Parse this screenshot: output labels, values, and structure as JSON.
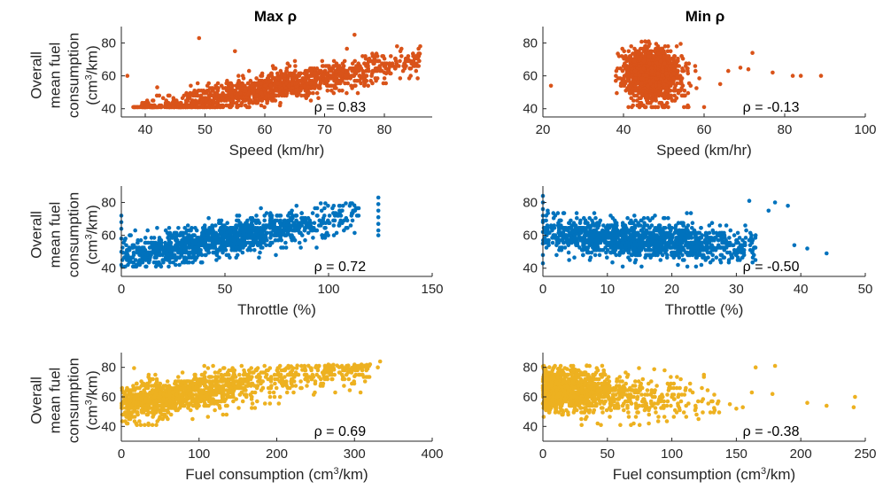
{
  "column_titles": [
    "Max ρ",
    "Min ρ"
  ],
  "row_ylabel_lines": [
    "Overall",
    "mean fuel",
    "consumption",
    "(cm³/km)"
  ],
  "colors": {
    "speed": "#D95319",
    "throttle": "#0072BD",
    "fuel": "#EDB120",
    "axis": "#262626"
  },
  "chart_data": [
    {
      "type": "scatter",
      "row": 0,
      "col": 0,
      "title": "Max ρ",
      "xlabel": "Speed (km/hr)",
      "ylabel": "Overall mean fuel consumption (cm³/km)",
      "xlim": [
        36,
        88
      ],
      "ylim": [
        35,
        90
      ],
      "xticks": [
        40,
        50,
        60,
        70,
        80
      ],
      "yticks": [
        40,
        60,
        80
      ],
      "annotation": "ρ = 0.83",
      "color": "#D95319",
      "generator": {
        "kind": "linear",
        "n": 1300,
        "xrange": [
          38,
          86
        ],
        "xcenter": 62,
        "xspread": 10,
        "slope": 0.7,
        "intercept": 10,
        "noise": 4.5,
        "seed": 11
      },
      "points": [
        [
          38,
          41
        ],
        [
          37,
          60
        ],
        [
          49,
          83
        ],
        [
          46,
          41
        ],
        [
          44,
          41
        ],
        [
          42,
          53
        ],
        [
          86,
          78
        ],
        [
          84,
          70
        ],
        [
          80,
          62
        ],
        [
          75,
          85
        ],
        [
          68,
          53
        ],
        [
          55,
          75
        ]
      ]
    },
    {
      "type": "scatter",
      "row": 0,
      "col": 1,
      "title": "Min ρ",
      "xlabel": "Speed (km/hr)",
      "ylabel": "",
      "xlim": [
        20,
        100
      ],
      "ylim": [
        35,
        90
      ],
      "xticks": [
        20,
        40,
        60,
        80,
        100
      ],
      "yticks": [
        40,
        60,
        80
      ],
      "annotation": "ρ = -0.13",
      "color": "#D95319",
      "generator": {
        "kind": "cluster",
        "n": 1300,
        "xrange": [
          38,
          62
        ],
        "xcenter": 47,
        "xspread": 3.5,
        "slope": -0.15,
        "intercept": 67,
        "noise": 8,
        "seed": 23
      },
      "points": [
        [
          22,
          54
        ],
        [
          89,
          60
        ],
        [
          84,
          60
        ],
        [
          82,
          60
        ],
        [
          77,
          62
        ],
        [
          72,
          74
        ],
        [
          71,
          64
        ],
        [
          69,
          65
        ],
        [
          66,
          63
        ],
        [
          64,
          55
        ],
        [
          60,
          41
        ],
        [
          55,
          41
        ],
        [
          48,
          41
        ],
        [
          44,
          41
        ]
      ]
    },
    {
      "type": "scatter",
      "row": 1,
      "col": 0,
      "title": "",
      "xlabel": "Throttle (%)",
      "ylabel": "Overall mean fuel consumption (cm³/km)",
      "xlim": [
        0,
        150
      ],
      "ylim": [
        35,
        90
      ],
      "xticks": [
        0,
        50,
        100,
        150
      ],
      "yticks": [
        40,
        60,
        80
      ],
      "annotation": "ρ = 0.72",
      "color": "#0072BD",
      "generator": {
        "kind": "linear",
        "n": 1300,
        "xrange": [
          0,
          115
        ],
        "xcenter": 45,
        "xspread": 24,
        "slope": 0.22,
        "intercept": 47,
        "noise": 5,
        "seed": 37
      },
      "points": [
        [
          124,
          83
        ],
        [
          124,
          79
        ],
        [
          124,
          75
        ],
        [
          124,
          71
        ],
        [
          124,
          67
        ],
        [
          124,
          63
        ],
        [
          124,
          60
        ],
        [
          0,
          72
        ],
        [
          0,
          68
        ],
        [
          0,
          64
        ],
        [
          0,
          58
        ],
        [
          0,
          50
        ],
        [
          0,
          42
        ],
        [
          4,
          60
        ],
        [
          2,
          58
        ]
      ]
    },
    {
      "type": "scatter",
      "row": 1,
      "col": 1,
      "title": "",
      "xlabel": "Throttle (%)",
      "ylabel": "",
      "xlim": [
        0,
        50
      ],
      "ylim": [
        35,
        90
      ],
      "xticks": [
        0,
        10,
        20,
        30,
        40,
        50
      ],
      "yticks": [
        40,
        60,
        80
      ],
      "annotation": "ρ = -0.50",
      "color": "#0072BD",
      "generator": {
        "kind": "linear",
        "n": 1300,
        "xrange": [
          0,
          33
        ],
        "xcenter": 14,
        "xspread": 8,
        "slope": -0.25,
        "intercept": 61,
        "noise": 5.5,
        "seed": 53
      },
      "points": [
        [
          0,
          84
        ],
        [
          0,
          80
        ],
        [
          0,
          76
        ],
        [
          0,
          72
        ],
        [
          0,
          68
        ],
        [
          0,
          62
        ],
        [
          0,
          55
        ],
        [
          0,
          48
        ],
        [
          0,
          43
        ],
        [
          44,
          49
        ],
        [
          41,
          52
        ],
        [
          39,
          54
        ],
        [
          38,
          78
        ],
        [
          36,
          80
        ],
        [
          35,
          75
        ],
        [
          33,
          60
        ],
        [
          32,
          81
        ]
      ]
    },
    {
      "type": "scatter",
      "row": 2,
      "col": 0,
      "title": "",
      "xlabel": "Fuel consumption  (cm³/km)",
      "ylabel": "Overall mean fuel consumption (cm³/km)",
      "xlim": [
        0,
        400
      ],
      "ylim": [
        30,
        90
      ],
      "xticks": [
        0,
        100,
        200,
        300,
        400
      ],
      "yticks": [
        40,
        60,
        80
      ],
      "annotation": "ρ = 0.69",
      "color": "#EDB120",
      "generator": {
        "kind": "linear",
        "n": 1300,
        "xrange": [
          0,
          320
        ],
        "xcenter": 60,
        "xspread": 60,
        "slope": 0.085,
        "intercept": 55,
        "noise": 6,
        "seed": 71
      },
      "points": [
        [
          333,
          84
        ],
        [
          330,
          80
        ],
        [
          320,
          82
        ],
        [
          310,
          78
        ],
        [
          305,
          80
        ],
        [
          300,
          74
        ],
        [
          290,
          81
        ],
        [
          270,
          77
        ],
        [
          250,
          80
        ],
        [
          45,
          41
        ],
        [
          40,
          41
        ],
        [
          35,
          41
        ],
        [
          30,
          41
        ],
        [
          25,
          41
        ],
        [
          20,
          41
        ]
      ]
    },
    {
      "type": "scatter",
      "row": 2,
      "col": 1,
      "title": "",
      "xlabel": "Fuel consumption  (cm³/km)",
      "ylabel": "",
      "xlim": [
        0,
        250
      ],
      "ylim": [
        30,
        90
      ],
      "xticks": [
        0,
        50,
        100,
        150,
        200,
        250
      ],
      "yticks": [
        40,
        60,
        80
      ],
      "annotation": "ρ = -0.38",
      "color": "#EDB120",
      "generator": {
        "kind": "exp",
        "n": 1300,
        "xrange": [
          0,
          160
        ],
        "xcenter": 0,
        "xspread": 35,
        "slope": -0.08,
        "intercept": 66,
        "noise": 7,
        "seed": 89
      },
      "points": [
        [
          242,
          60
        ],
        [
          241,
          53
        ],
        [
          220,
          54
        ],
        [
          205,
          56
        ],
        [
          180,
          81
        ],
        [
          178,
          62
        ],
        [
          165,
          80
        ],
        [
          162,
          63
        ],
        [
          155,
          53
        ],
        [
          150,
          52
        ],
        [
          145,
          55
        ],
        [
          75,
          41
        ],
        [
          60,
          41
        ],
        [
          45,
          41
        ],
        [
          30,
          41
        ]
      ]
    }
  ]
}
